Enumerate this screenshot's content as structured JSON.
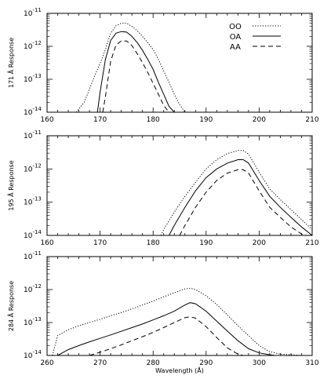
{
  "chart_data": [
    {
      "type": "line",
      "ylabel": "171 Å Response",
      "xlabel": "",
      "xlim": [
        160,
        210
      ],
      "ylim": [
        1e-14,
        1e-11
      ],
      "yscale": "log",
      "xticks": [
        160,
        170,
        180,
        190,
        200,
        210
      ],
      "yticks": [
        {
          "base": "10",
          "exp": "-14",
          "value": 1e-14
        },
        {
          "base": "10",
          "exp": "-13",
          "value": 1e-13
        },
        {
          "base": "10",
          "exp": "-12",
          "value": 1e-12
        },
        {
          "base": "10",
          "exp": "-11",
          "value": 1e-11
        }
      ],
      "legend": {
        "position": "top-right",
        "entries": [
          {
            "name": "OO",
            "style": "dotted"
          },
          {
            "name": "OA",
            "style": "solid"
          },
          {
            "name": "AA",
            "style": "dashed"
          }
        ]
      },
      "series": [
        {
          "name": "OO",
          "style": "dotted",
          "x": [
            165.5,
            167,
            168,
            169,
            170,
            171,
            172,
            173,
            174,
            175,
            176,
            177,
            178,
            179,
            180,
            181,
            182,
            183,
            184,
            185,
            186
          ],
          "y": [
            1e-14,
            2e-14,
            5e-14,
            1.3e-13,
            3e-13,
            8e-13,
            2.5e-12,
            4.2e-12,
            5e-12,
            5e-12,
            4e-12,
            3e-12,
            2e-12,
            1.3e-12,
            8e-13,
            4e-13,
            1.8e-13,
            8e-14,
            3.5e-14,
            1.7e-14,
            1e-14
          ]
        },
        {
          "name": "OA",
          "style": "solid",
          "x": [
            169.5,
            170,
            171,
            172,
            173,
            174,
            175,
            176,
            177,
            178,
            179,
            180,
            181,
            182,
            183,
            184
          ],
          "y": [
            1e-14,
            4e-14,
            4e-13,
            1.5e-12,
            2.5e-12,
            2.8e-12,
            2.7e-12,
            2e-12,
            1.3e-12,
            7.5e-13,
            4e-13,
            2e-13,
            8e-14,
            3.5e-14,
            1.5e-14,
            1e-14
          ]
        },
        {
          "name": "AA",
          "style": "dashed",
          "x": [
            170.5,
            171,
            172,
            173,
            174,
            175,
            176,
            177,
            178,
            179,
            180,
            181,
            182,
            183
          ],
          "y": [
            1e-14,
            3e-14,
            3.5e-13,
            1.1e-12,
            1.45e-12,
            1.45e-12,
            1.05e-12,
            6e-13,
            3.2e-13,
            1.6e-13,
            7.5e-14,
            3.5e-14,
            1.6e-14,
            1e-14
          ]
        }
      ]
    },
    {
      "type": "line",
      "ylabel": "195 Å Response",
      "xlabel": "",
      "xlim": [
        160,
        210
      ],
      "ylim": [
        1e-14,
        1e-11
      ],
      "yscale": "log",
      "xticks": [
        160,
        170,
        180,
        190,
        200,
        210
      ],
      "yticks": [
        {
          "base": "10",
          "exp": "-14",
          "value": 1e-14
        },
        {
          "base": "10",
          "exp": "-13",
          "value": 1e-13
        },
        {
          "base": "10",
          "exp": "-12",
          "value": 1e-12
        },
        {
          "base": "10",
          "exp": "-11",
          "value": 1e-11
        }
      ],
      "series": [
        {
          "name": "OO",
          "style": "dotted",
          "x": [
            181.5,
            182,
            184,
            186,
            188,
            190,
            192,
            194,
            196,
            197,
            198,
            200,
            202,
            204,
            206,
            208,
            210
          ],
          "y": [
            1e-14,
            1.5e-14,
            5e-14,
            1.5e-13,
            4e-13,
            1e-12,
            1.9e-12,
            2.9e-12,
            3.6e-12,
            3.6e-12,
            2.8e-12,
            8e-13,
            2.5e-13,
            1.2e-13,
            6e-14,
            3e-14,
            1.5e-14
          ]
        },
        {
          "name": "OA",
          "style": "solid",
          "x": [
            183,
            184,
            186,
            188,
            190,
            192,
            194,
            196,
            197,
            198,
            200,
            202,
            204,
            206,
            208,
            210
          ],
          "y": [
            1e-14,
            2e-14,
            7e-14,
            2.2e-13,
            5.5e-13,
            1e-12,
            1.5e-12,
            1.9e-12,
            1.9e-12,
            1.5e-12,
            4.5e-13,
            1.5e-13,
            7e-14,
            3.5e-14,
            1.8e-14,
            1e-14
          ]
        },
        {
          "name": "AA",
          "style": "dashed",
          "x": [
            185,
            186,
            188,
            190,
            192,
            194,
            196,
            197,
            198,
            200,
            202,
            204,
            206,
            208,
            209
          ],
          "y": [
            1e-14,
            2e-14,
            7e-14,
            2e-13,
            4.5e-13,
            7.5e-13,
            9.5e-13,
            9.5e-13,
            7.5e-13,
            2.2e-13,
            7e-14,
            3.5e-14,
            1.8e-14,
            1.1e-14,
            1e-14
          ]
        }
      ]
    },
    {
      "type": "line",
      "ylabel": "284 Å Response",
      "xlabel": "Wavelength (Å)",
      "xlim": [
        260,
        310
      ],
      "ylim": [
        1e-14,
        1e-11
      ],
      "yscale": "log",
      "xticks": [
        260,
        270,
        280,
        290,
        300,
        310
      ],
      "yticks": [
        {
          "base": "10",
          "exp": "-14",
          "value": 1e-14
        },
        {
          "base": "10",
          "exp": "-13",
          "value": 1e-13
        },
        {
          "base": "10",
          "exp": "-12",
          "value": 1e-12
        },
        {
          "base": "10",
          "exp": "-11",
          "value": 1e-11
        }
      ],
      "series": [
        {
          "name": "OO",
          "style": "dotted",
          "x": [
            261,
            262,
            264,
            266,
            268,
            270,
            272,
            274,
            276,
            278,
            280,
            282,
            284,
            286,
            287,
            288,
            290,
            292,
            294,
            296,
            298,
            300,
            302,
            304,
            306,
            308
          ],
          "y": [
            1e-14,
            4e-14,
            6e-14,
            8e-14,
            1e-13,
            1.25e-13,
            1.6e-13,
            2e-13,
            2.6e-13,
            3.4e-13,
            4.5e-13,
            6e-13,
            8e-13,
            1.05e-12,
            1.1e-12,
            1e-12,
            6.5e-13,
            3.5e-13,
            1.7e-13,
            8e-14,
            4e-14,
            2e-14,
            1.3e-14,
            1.1e-14,
            1.05e-14,
            1e-14
          ]
        },
        {
          "name": "OA",
          "style": "solid",
          "x": [
            262,
            264,
            266,
            268,
            270,
            272,
            274,
            276,
            278,
            280,
            282,
            284,
            286,
            287,
            288,
            290,
            292,
            294,
            296,
            298,
            300,
            302,
            303
          ],
          "y": [
            1e-14,
            1.5e-14,
            2e-14,
            2.6e-14,
            3.3e-14,
            4.2e-14,
            5.4e-14,
            7e-14,
            9e-14,
            1.2e-13,
            1.6e-13,
            2.2e-13,
            3.4e-13,
            4e-13,
            3.7e-13,
            2.2e-13,
            1.1e-13,
            5.5e-14,
            2.8e-14,
            1.6e-14,
            1.2e-14,
            1.05e-14,
            1e-14
          ]
        },
        {
          "name": "AA",
          "style": "dashed",
          "x": [
            268,
            270,
            272,
            274,
            276,
            278,
            280,
            282,
            284,
            286,
            287,
            288,
            290,
            292,
            294,
            296,
            297
          ],
          "y": [
            1e-14,
            1.25e-14,
            1.6e-14,
            2.1e-14,
            2.8e-14,
            3.7e-14,
            5e-14,
            7e-14,
            1e-13,
            1.4e-13,
            1.5e-13,
            1.35e-13,
            7.5e-14,
            3.5e-14,
            1.7e-14,
            1.1e-14,
            1e-14
          ]
        }
      ]
    }
  ]
}
